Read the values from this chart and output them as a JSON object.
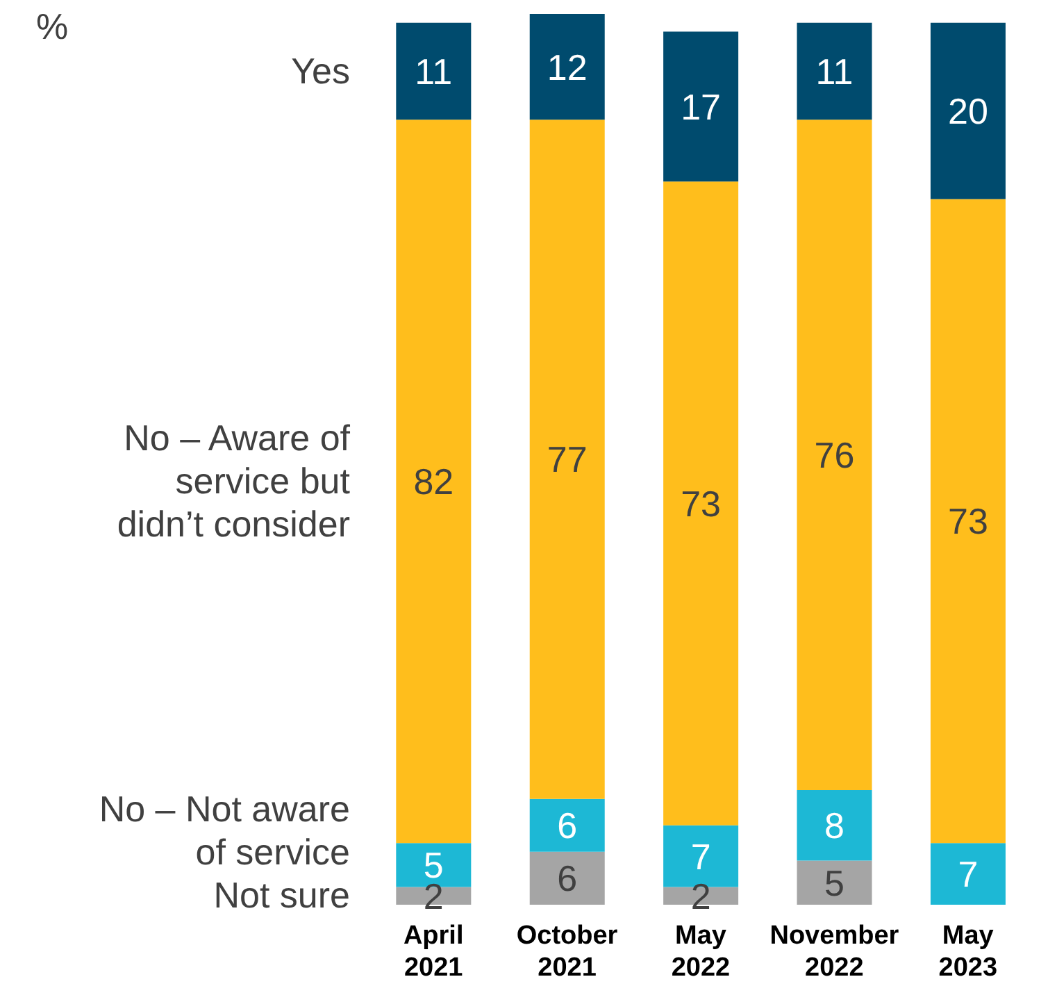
{
  "chart_data": {
    "type": "bar",
    "stacked": true,
    "annotations": [
      "%"
    ],
    "data_labels": true,
    "legend": "left",
    "categories": [
      "April 2021",
      "October 2021",
      "May 2022",
      "November 2022",
      "May 2023"
    ],
    "series": [
      {
        "name": "Not sure",
        "color": "#a5a5a5",
        "values": [
          2,
          6,
          2,
          5,
          null
        ]
      },
      {
        "name": "No – Not aware of service",
        "color": "#1db8d5",
        "values": [
          5,
          6,
          7,
          8,
          7
        ]
      },
      {
        "name": "No – Aware of service but didn’t consider",
        "color": "#ffbe1c",
        "values": [
          82,
          77,
          73,
          76,
          73
        ]
      },
      {
        "name": "Yes",
        "color": "#004b6e",
        "values": [
          11,
          12,
          17,
          11,
          20
        ]
      }
    ]
  }
}
